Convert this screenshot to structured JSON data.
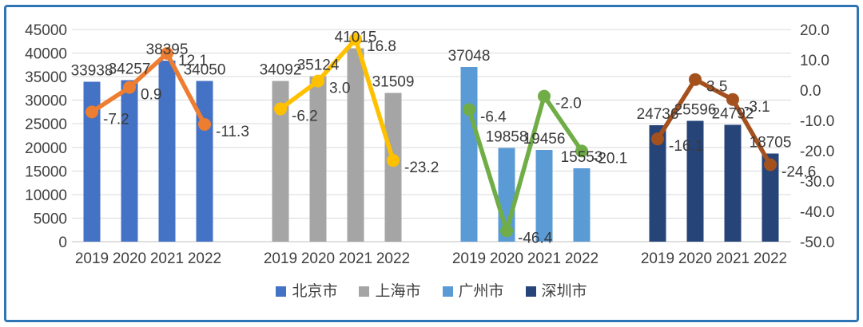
{
  "chart_data": {
    "type": "bar",
    "subtype": "combo bar+line, 4 city clusters, dual y-axes",
    "title": "",
    "categories_per_group": [
      "2019",
      "2020",
      "2021",
      "2022"
    ],
    "left_axis": {
      "min": 0,
      "max": 45000,
      "step": 5000,
      "tick_labels": [
        "45000",
        "40000",
        "35000",
        "30000",
        "25000",
        "20000",
        "15000",
        "10000",
        "5000",
        "0"
      ]
    },
    "right_axis": {
      "min": -50,
      "max": 20,
      "step": 10,
      "tick_labels": [
        "20.0",
        "10.0",
        "0.0",
        "-10.0",
        "-20.0",
        "-30.0",
        "-40.0",
        "-50.0"
      ]
    },
    "grid": true,
    "legend_position": "bottom",
    "groups": [
      {
        "city": "北京市",
        "bar_color": "#4472C4",
        "line_color": "#ED7D31",
        "bars": [
          33938,
          34257,
          38395,
          34050
        ],
        "line": [
          -7.2,
          0.9,
          12.1,
          -11.3
        ],
        "line_labels": [
          "-7.2",
          "0.9",
          "12.1",
          "-11.3"
        ]
      },
      {
        "city": "上海市",
        "bar_color": "#A5A5A5",
        "line_color": "#FFC000",
        "bars": [
          34092,
          35124,
          41015,
          31509
        ],
        "line": [
          -6.2,
          3.0,
          16.8,
          -23.2
        ],
        "line_labels": [
          "-6.2",
          "3.0",
          "16.8",
          "-23.2"
        ]
      },
      {
        "city": "广州市",
        "bar_color": "#5B9BD5",
        "line_color": "#70AD47",
        "bars": [
          37048,
          19858,
          19456,
          15553
        ],
        "line": [
          -6.4,
          -46.4,
          -2.0,
          -20.1
        ],
        "line_labels": [
          "-6.4",
          "-46.4",
          "-2.0",
          "-20.1"
        ]
      },
      {
        "city": "深圳市",
        "bar_color": "#264478",
        "line_color": "#A5511E",
        "bars": [
          24736,
          25596,
          24792,
          18705
        ],
        "line": [
          -16.1,
          3.5,
          -3.1,
          -24.6
        ],
        "line_labels": [
          "-16.1",
          "3.5",
          "-3.1",
          "-24.6"
        ]
      }
    ],
    "legend": [
      {
        "label": "北京市",
        "color": "#4472C4"
      },
      {
        "label": "上海市",
        "color": "#A5A5A5"
      },
      {
        "label": "广州市",
        "color": "#5B9BD5"
      },
      {
        "label": "深圳市",
        "color": "#264478"
      }
    ],
    "style": {
      "frame_border_color": "#2E75B6",
      "gridline_color": "#D9D9D9",
      "baseline_color": "#BFBFBF",
      "axis_text_color": "#404040",
      "data_label_color": "#3A3A3A"
    }
  }
}
